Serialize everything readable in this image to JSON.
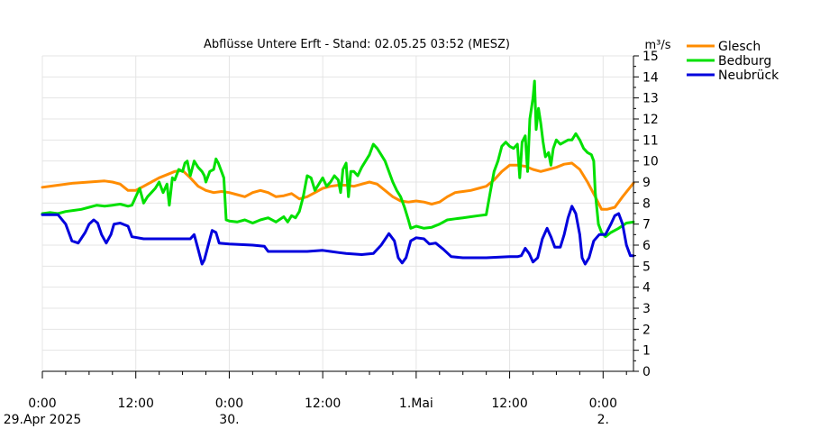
{
  "chart_data": {
    "type": "line",
    "title": "Abflüsse Untere Erft - Stand: 02.05.25 03:52 (MESZ)",
    "ylabel": "m³/s",
    "ylim": [
      0,
      15
    ],
    "y_ticks": [
      0,
      1,
      2,
      3,
      4,
      5,
      6,
      7,
      8,
      9,
      10,
      11,
      12,
      13,
      14,
      15
    ],
    "xlim": [
      0,
      75.9
    ],
    "x_ticks": [
      {
        "x": 0,
        "line1": "0:00",
        "line2": "29.Apr 2025"
      },
      {
        "x": 12,
        "line1": "12:00",
        "line2": ""
      },
      {
        "x": 24,
        "line1": "0:00",
        "line2": "30."
      },
      {
        "x": 36,
        "line1": "12:00",
        "line2": ""
      },
      {
        "x": 48,
        "line1": "1.Mai",
        "line2": ""
      },
      {
        "x": 60,
        "line1": "12:00",
        "line2": ""
      },
      {
        "x": 72,
        "line1": "0:00",
        "line2": "2."
      }
    ],
    "grid": true,
    "legend_position": "top-right",
    "series": [
      {
        "name": "Glesch",
        "color": "#ff8c00",
        "points": [
          [
            0,
            8.75
          ],
          [
            2,
            8.85
          ],
          [
            4,
            8.95
          ],
          [
            6,
            9.0
          ],
          [
            8,
            9.05
          ],
          [
            9,
            9.0
          ],
          [
            10,
            8.9
          ],
          [
            11,
            8.6
          ],
          [
            12,
            8.6
          ],
          [
            13,
            8.8
          ],
          [
            14,
            9.0
          ],
          [
            15,
            9.2
          ],
          [
            16,
            9.35
          ],
          [
            17,
            9.5
          ],
          [
            18,
            9.55
          ],
          [
            19,
            9.2
          ],
          [
            20,
            8.8
          ],
          [
            21,
            8.6
          ],
          [
            22,
            8.5
          ],
          [
            23,
            8.55
          ],
          [
            24,
            8.5
          ],
          [
            25,
            8.4
          ],
          [
            26,
            8.3
          ],
          [
            27,
            8.5
          ],
          [
            28,
            8.6
          ],
          [
            29,
            8.5
          ],
          [
            30,
            8.3
          ],
          [
            31,
            8.35
          ],
          [
            32,
            8.45
          ],
          [
            33,
            8.2
          ],
          [
            34,
            8.3
          ],
          [
            35,
            8.5
          ],
          [
            36,
            8.7
          ],
          [
            37,
            8.8
          ],
          [
            38,
            8.85
          ],
          [
            39,
            8.85
          ],
          [
            40,
            8.8
          ],
          [
            41,
            8.9
          ],
          [
            42,
            9.0
          ],
          [
            43,
            8.9
          ],
          [
            44,
            8.6
          ],
          [
            45,
            8.3
          ],
          [
            46,
            8.1
          ],
          [
            47,
            8.05
          ],
          [
            48,
            8.1
          ],
          [
            49,
            8.05
          ],
          [
            50,
            7.95
          ],
          [
            51,
            8.05
          ],
          [
            52,
            8.3
          ],
          [
            53,
            8.5
          ],
          [
            54,
            8.55
          ],
          [
            55,
            8.6
          ],
          [
            56,
            8.7
          ],
          [
            57,
            8.8
          ],
          [
            58,
            9.1
          ],
          [
            59,
            9.5
          ],
          [
            60,
            9.8
          ],
          [
            61,
            9.8
          ],
          [
            62,
            9.75
          ],
          [
            63,
            9.6
          ],
          [
            64,
            9.5
          ],
          [
            65,
            9.6
          ],
          [
            66,
            9.7
          ],
          [
            67,
            9.85
          ],
          [
            68,
            9.9
          ],
          [
            69,
            9.6
          ],
          [
            70,
            9.0
          ],
          [
            71,
            8.3
          ],
          [
            71.8,
            7.7
          ],
          [
            72.5,
            7.7
          ],
          [
            73.5,
            7.8
          ],
          [
            74.5,
            8.3
          ],
          [
            75.9,
            8.95
          ]
        ]
      },
      {
        "name": "Bedburg",
        "color": "#00e000",
        "points": [
          [
            0,
            7.5
          ],
          [
            1,
            7.55
          ],
          [
            2,
            7.5
          ],
          [
            3,
            7.6
          ],
          [
            4,
            7.65
          ],
          [
            5,
            7.7
          ],
          [
            6,
            7.8
          ],
          [
            7,
            7.9
          ],
          [
            8,
            7.85
          ],
          [
            9,
            7.9
          ],
          [
            10,
            7.95
          ],
          [
            11,
            7.85
          ],
          [
            11.5,
            7.9
          ],
          [
            12,
            8.3
          ],
          [
            12.5,
            8.7
          ],
          [
            13,
            8.0
          ],
          [
            13.5,
            8.3
          ],
          [
            14,
            8.5
          ],
          [
            14.5,
            8.7
          ],
          [
            15,
            9.0
          ],
          [
            15.5,
            8.5
          ],
          [
            16,
            8.9
          ],
          [
            16.3,
            7.9
          ],
          [
            16.7,
            9.2
          ],
          [
            17,
            9.1
          ],
          [
            17.5,
            9.6
          ],
          [
            18,
            9.5
          ],
          [
            18.3,
            9.9
          ],
          [
            18.6,
            10.0
          ],
          [
            19,
            9.3
          ],
          [
            19.5,
            10.0
          ],
          [
            20,
            9.7
          ],
          [
            20.5,
            9.5
          ],
          [
            20.8,
            9.3
          ],
          [
            21,
            9.0
          ],
          [
            21.5,
            9.5
          ],
          [
            22,
            9.6
          ],
          [
            22.3,
            10.1
          ],
          [
            22.6,
            9.9
          ],
          [
            23,
            9.5
          ],
          [
            23.3,
            9.2
          ],
          [
            23.6,
            7.2
          ],
          [
            24,
            7.15
          ],
          [
            25,
            7.1
          ],
          [
            26,
            7.2
          ],
          [
            27,
            7.05
          ],
          [
            28,
            7.2
          ],
          [
            29,
            7.3
          ],
          [
            30,
            7.1
          ],
          [
            31,
            7.35
          ],
          [
            31.5,
            7.1
          ],
          [
            32,
            7.4
          ],
          [
            32.5,
            7.3
          ],
          [
            33,
            7.6
          ],
          [
            33.5,
            8.3
          ],
          [
            34,
            9.3
          ],
          [
            34.5,
            9.2
          ],
          [
            35,
            8.6
          ],
          [
            35.5,
            8.9
          ],
          [
            36,
            9.2
          ],
          [
            36.5,
            8.8
          ],
          [
            37,
            9.0
          ],
          [
            37.5,
            9.3
          ],
          [
            38,
            9.1
          ],
          [
            38.3,
            8.5
          ],
          [
            38.6,
            9.6
          ],
          [
            39,
            9.9
          ],
          [
            39.3,
            8.3
          ],
          [
            39.6,
            9.5
          ],
          [
            40,
            9.5
          ],
          [
            40.5,
            9.3
          ],
          [
            41,
            9.7
          ],
          [
            41.5,
            10.0
          ],
          [
            42,
            10.3
          ],
          [
            42.5,
            10.8
          ],
          [
            43,
            10.6
          ],
          [
            43.5,
            10.3
          ],
          [
            44,
            10.0
          ],
          [
            44.5,
            9.5
          ],
          [
            45,
            9.0
          ],
          [
            45.5,
            8.6
          ],
          [
            46,
            8.3
          ],
          [
            46.5,
            7.8
          ],
          [
            47,
            7.2
          ],
          [
            47.3,
            6.8
          ],
          [
            48,
            6.9
          ],
          [
            49,
            6.8
          ],
          [
            50,
            6.85
          ],
          [
            51,
            7.0
          ],
          [
            52,
            7.2
          ],
          [
            53,
            7.25
          ],
          [
            54,
            7.3
          ],
          [
            55,
            7.35
          ],
          [
            56,
            7.4
          ],
          [
            57,
            7.45
          ],
          [
            57.5,
            8.5
          ],
          [
            58,
            9.5
          ],
          [
            58.5,
            10.0
          ],
          [
            59,
            10.7
          ],
          [
            59.5,
            10.9
          ],
          [
            60,
            10.7
          ],
          [
            60.5,
            10.6
          ],
          [
            61,
            10.8
          ],
          [
            61.3,
            9.2
          ],
          [
            61.6,
            10.9
          ],
          [
            62,
            11.2
          ],
          [
            62.3,
            9.5
          ],
          [
            62.6,
            12.0
          ],
          [
            63,
            13.0
          ],
          [
            63.2,
            13.8
          ],
          [
            63.4,
            11.5
          ],
          [
            63.7,
            12.5
          ],
          [
            64,
            11.8
          ],
          [
            64.3,
            10.9
          ],
          [
            64.6,
            10.2
          ],
          [
            65,
            10.4
          ],
          [
            65.3,
            9.8
          ],
          [
            65.6,
            10.6
          ],
          [
            66,
            11.0
          ],
          [
            66.5,
            10.8
          ],
          [
            67,
            10.9
          ],
          [
            67.5,
            11.0
          ],
          [
            68,
            11.0
          ],
          [
            68.5,
            11.3
          ],
          [
            69,
            11.0
          ],
          [
            69.5,
            10.6
          ],
          [
            70,
            10.4
          ],
          [
            70.5,
            10.3
          ],
          [
            70.8,
            10.0
          ],
          [
            71,
            8.5
          ],
          [
            71.4,
            7.0
          ],
          [
            71.8,
            6.6
          ],
          [
            72.3,
            6.4
          ],
          [
            73,
            6.6
          ],
          [
            74,
            6.8
          ],
          [
            75,
            7.05
          ],
          [
            75.9,
            7.1
          ]
        ]
      },
      {
        "name": "Neubrück",
        "color": "#0000dd",
        "points": [
          [
            0,
            7.45
          ],
          [
            2,
            7.45
          ],
          [
            3,
            7.0
          ],
          [
            3.8,
            6.2
          ],
          [
            4.6,
            6.1
          ],
          [
            5.5,
            6.6
          ],
          [
            6,
            7.0
          ],
          [
            6.6,
            7.2
          ],
          [
            7.1,
            7.05
          ],
          [
            7.6,
            6.5
          ],
          [
            8.2,
            6.1
          ],
          [
            8.8,
            6.5
          ],
          [
            9.2,
            7.0
          ],
          [
            10,
            7.05
          ],
          [
            11,
            6.9
          ],
          [
            11.5,
            6.4
          ],
          [
            13,
            6.3
          ],
          [
            16,
            6.3
          ],
          [
            18,
            6.3
          ],
          [
            19,
            6.3
          ],
          [
            19.5,
            6.5
          ],
          [
            20,
            5.8
          ],
          [
            20.5,
            5.1
          ],
          [
            20.8,
            5.3
          ],
          [
            21.3,
            6.0
          ],
          [
            21.8,
            6.7
          ],
          [
            22.3,
            6.6
          ],
          [
            22.7,
            6.1
          ],
          [
            24,
            6.05
          ],
          [
            27,
            6.0
          ],
          [
            28.5,
            5.95
          ],
          [
            29,
            5.7
          ],
          [
            31,
            5.7
          ],
          [
            34,
            5.7
          ],
          [
            36,
            5.75
          ],
          [
            37,
            5.7
          ],
          [
            38,
            5.65
          ],
          [
            39,
            5.6
          ],
          [
            41,
            5.55
          ],
          [
            42.5,
            5.6
          ],
          [
            43.5,
            6.0
          ],
          [
            44.5,
            6.55
          ],
          [
            45.2,
            6.2
          ],
          [
            45.7,
            5.4
          ],
          [
            46.2,
            5.15
          ],
          [
            46.7,
            5.4
          ],
          [
            47.3,
            6.2
          ],
          [
            48,
            6.35
          ],
          [
            49,
            6.3
          ],
          [
            49.7,
            6.05
          ],
          [
            50.5,
            6.1
          ],
          [
            51.5,
            5.8
          ],
          [
            52.5,
            5.45
          ],
          [
            54,
            5.4
          ],
          [
            57,
            5.4
          ],
          [
            60,
            5.45
          ],
          [
            61,
            5.45
          ],
          [
            61.5,
            5.5
          ],
          [
            62,
            5.85
          ],
          [
            62.5,
            5.6
          ],
          [
            63,
            5.2
          ],
          [
            63.6,
            5.4
          ],
          [
            64.2,
            6.3
          ],
          [
            64.8,
            6.8
          ],
          [
            65.3,
            6.4
          ],
          [
            65.8,
            5.9
          ],
          [
            66.5,
            5.9
          ],
          [
            67,
            6.5
          ],
          [
            67.5,
            7.3
          ],
          [
            68,
            7.85
          ],
          [
            68.5,
            7.5
          ],
          [
            69,
            6.5
          ],
          [
            69.3,
            5.4
          ],
          [
            69.7,
            5.1
          ],
          [
            70.2,
            5.4
          ],
          [
            70.8,
            6.2
          ],
          [
            71.5,
            6.5
          ],
          [
            72.3,
            6.5
          ],
          [
            73,
            7.0
          ],
          [
            73.5,
            7.4
          ],
          [
            74,
            7.5
          ],
          [
            74.5,
            7.0
          ],
          [
            75,
            6.0
          ],
          [
            75.5,
            5.5
          ],
          [
            75.9,
            5.5
          ]
        ]
      }
    ]
  }
}
